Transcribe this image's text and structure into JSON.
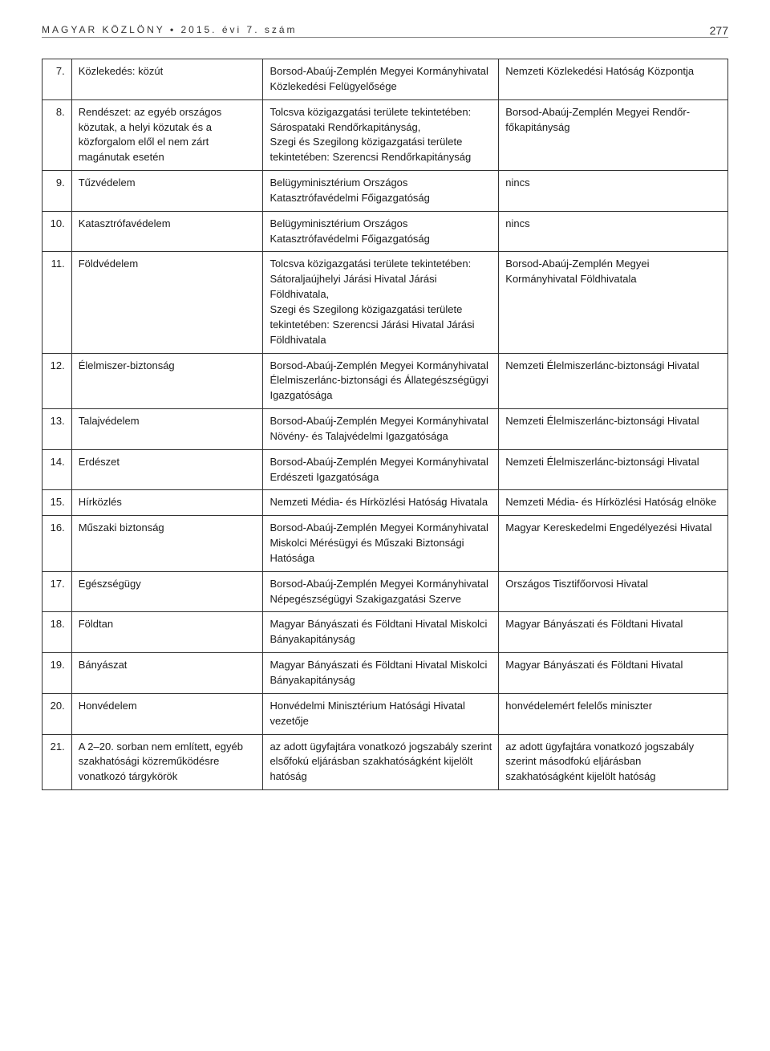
{
  "header": {
    "journal": "MAGYAR KÖZLÖNY",
    "separator": "•",
    "issue": "2015. évi 7. szám",
    "page_number": "277"
  },
  "table": {
    "rows": [
      {
        "n": "7.",
        "c1": "Közlekedés: közút",
        "c2": "Borsod-Abaúj-Zemplén Megyei Kormányhivatal Közlekedési Felügyelősége",
        "c3": "Nemzeti Közlekedési Hatóság Központja"
      },
      {
        "n": "8.",
        "c1": "Rendészet: az egyéb országos közutak, a helyi közutak és a közforgalom elől el nem zárt magánutak esetén",
        "c2": "Tolcsva közigazgatási területe tekintetében: Sárospataki Rendőrkapitányság,\nSzegi és Szegilong közigazgatási területe tekintetében: Szerencsi Rendőrkapitányság",
        "c3": "Borsod-Abaúj-Zemplén Megyei Rendőr-főkapitányság"
      },
      {
        "n": "9.",
        "c1": "Tűzvédelem",
        "c2": "Belügyminisztérium Országos Katasztrófavédelmi Főigazgatóság",
        "c3": "nincs"
      },
      {
        "n": "10.",
        "c1": "Katasztrófavédelem",
        "c2": "Belügyminisztérium Országos Katasztrófavédelmi Főigazgatóság",
        "c3": "nincs"
      },
      {
        "n": "11.",
        "c1": "Földvédelem",
        "c2": "Tolcsva közigazgatási területe tekintetében: Sátoraljaújhelyi Járási Hivatal Járási Földhivatala,\nSzegi és Szegilong közigazgatási területe tekintetében: Szerencsi Járási Hivatal Járási Földhivatala",
        "c3": "Borsod-Abaúj-Zemplén Megyei Kormányhivatal Földhivatala"
      },
      {
        "n": "12.",
        "c1": "Élelmiszer-biztonság",
        "c2": "Borsod-Abaúj-Zemplén Megyei Kormányhivatal Élelmiszerlánc-biztonsági és Állategészségügyi Igazgatósága",
        "c3": "Nemzeti Élelmiszerlánc-biztonsági Hivatal"
      },
      {
        "n": "13.",
        "c1": "Talajvédelem",
        "c2": "Borsod-Abaúj-Zemplén Megyei Kormányhivatal Növény- és Talajvédelmi Igazgatósága",
        "c3": "Nemzeti Élelmiszerlánc-biztonsági Hivatal"
      },
      {
        "n": "14.",
        "c1": "Erdészet",
        "c2": "Borsod-Abaúj-Zemplén Megyei Kormányhivatal Erdészeti Igazgatósága",
        "c3": "Nemzeti Élelmiszerlánc-biztonsági Hivatal"
      },
      {
        "n": "15.",
        "c1": "Hírközlés",
        "c2": "Nemzeti Média- és Hírközlési Hatóság Hivatala",
        "c3": "Nemzeti Média- és Hírközlési Hatóság elnöke"
      },
      {
        "n": "16.",
        "c1": "Műszaki biztonság",
        "c2": "Borsod-Abaúj-Zemplén Megyei Kormányhivatal Miskolci Mérésügyi és Műszaki Biztonsági Hatósága",
        "c3": "Magyar Kereskedelmi Engedélyezési Hivatal"
      },
      {
        "n": "17.",
        "c1": "Egészségügy",
        "c2": "Borsod-Abaúj-Zemplén Megyei Kormányhivatal Népegészségügyi Szakigazgatási Szerve",
        "c3": "Országos Tisztifőorvosi Hivatal"
      },
      {
        "n": "18.",
        "c1": "Földtan",
        "c2": "Magyar Bányászati és Földtani Hivatal Miskolci Bányakapitányság",
        "c3": "Magyar Bányászati és Földtani Hivatal"
      },
      {
        "n": "19.",
        "c1": "Bányászat",
        "c2": "Magyar Bányászati és Földtani Hivatal Miskolci Bányakapitányság",
        "c3": "Magyar Bányászati és Földtani Hivatal"
      },
      {
        "n": "20.",
        "c1": "Honvédelem",
        "c2": "Honvédelmi Minisztérium Hatósági Hivatal vezetője",
        "c3": "honvédelemért felelős miniszter"
      },
      {
        "n": "21.",
        "c1": "A 2–20. sorban nem említett, egyéb szakhatósági közreműködésre vonatkozó tárgykörök",
        "c2": "az adott ügyfajtára vonatkozó jogszabály szerint elsőfokú eljárásban szakhatóságként kijelölt hatóság",
        "c3": "az adott ügyfajtára vonatkozó jogszabály szerint másodfokú eljárásban szakhatóságként kijelölt hatóság"
      }
    ]
  }
}
